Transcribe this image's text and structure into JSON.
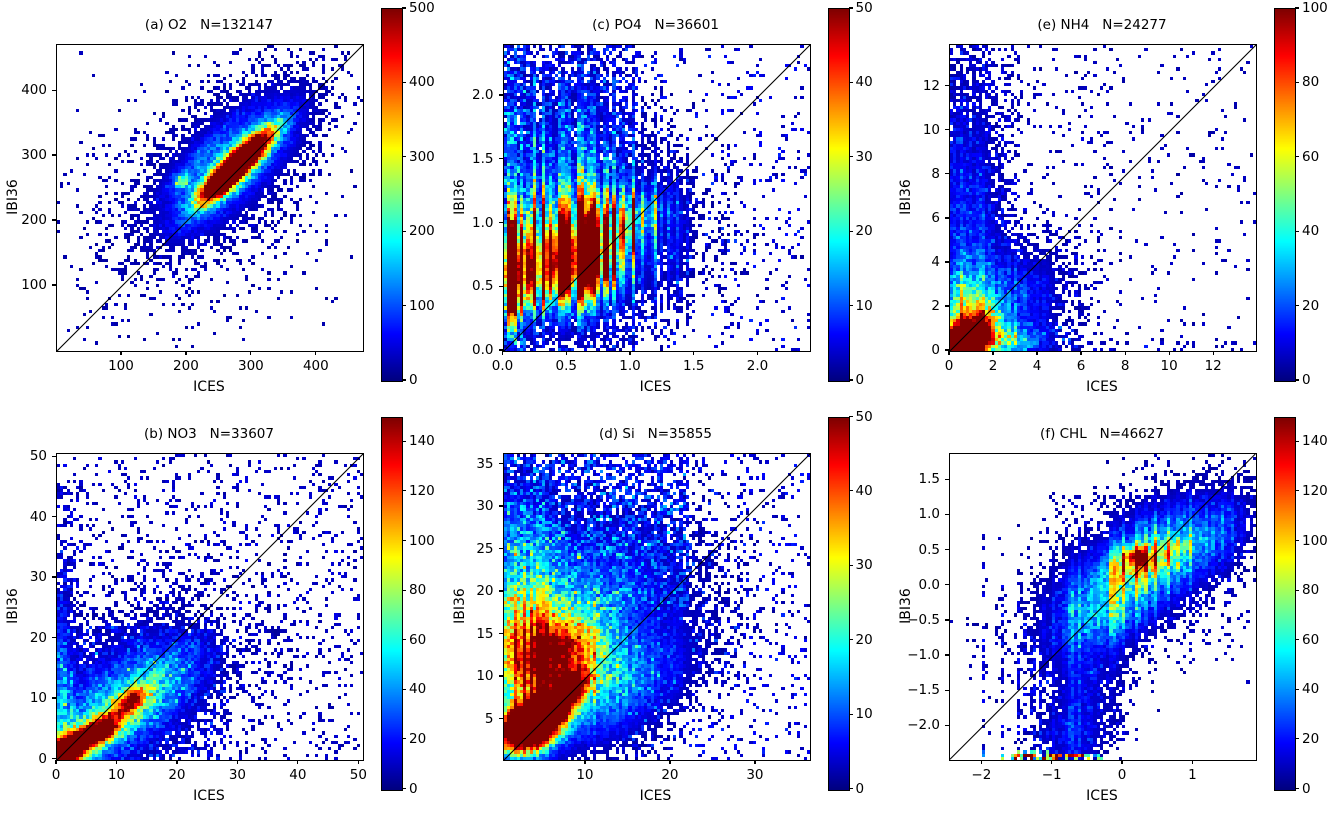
{
  "figure": {
    "background": "#ffffff",
    "text_color": "#000000",
    "axis_color": "#000000",
    "colormap": "jet",
    "identity_line_color": "#000000"
  },
  "chart_data": [
    {
      "type": "heatmap",
      "panel": "a",
      "variable": "O2",
      "n": 132147,
      "title": "(a) O2   N=132147",
      "xlabel": "ICES",
      "ylabel": "IBI36",
      "xlim": [
        0,
        471
      ],
      "ylim": [
        0,
        471
      ],
      "xticks": [
        100,
        200,
        300,
        400
      ],
      "xtick_labels": [
        "100",
        "200",
        "300",
        "400"
      ],
      "yticks": [
        100,
        200,
        300,
        400
      ],
      "ytick_labels": [
        "100",
        "200",
        "300",
        "400"
      ],
      "colorbar": {
        "vmin": 0,
        "vmax": 500,
        "ticks": [
          0,
          100,
          200,
          300,
          400,
          500
        ],
        "tick_labels": [
          "0",
          "100",
          "200",
          "300",
          "400",
          "500"
        ]
      },
      "identity_line": true,
      "bins": 96,
      "stripe_strength": 0,
      "density_blobs": [
        {
          "x": 276,
          "y": 285,
          "sx": 46,
          "sy": 11,
          "ang": 45,
          "amp": 900
        },
        {
          "x": 252,
          "y": 258,
          "sx": 13,
          "sy": 8,
          "ang": 45,
          "amp": 620
        },
        {
          "x": 276,
          "y": 285,
          "sx": 60,
          "sy": 20,
          "ang": 45,
          "amp": 180
        },
        {
          "x": 268,
          "y": 290,
          "sx": 95,
          "sy": 42,
          "ang": 45,
          "amp": 70
        },
        {
          "x": 255,
          "y": 280,
          "sx": 140,
          "sy": 80,
          "ang": 45,
          "amp": 16
        },
        {
          "x": 225,
          "y": 305,
          "sx": 50,
          "sy": 9,
          "ang": 45,
          "amp": 45
        },
        {
          "x": 193,
          "y": 262,
          "sx": 9,
          "sy": 7,
          "ang": 45,
          "amp": 210
        }
      ],
      "noise_rects": [
        {
          "x0": 15,
          "x1": 460,
          "y0": 15,
          "y1": 460,
          "prob": 0.035,
          "amp": 25
        },
        {
          "x0": 40,
          "x1": 330,
          "y0": 40,
          "y1": 330,
          "prob": 0.07,
          "amp": 22
        },
        {
          "x0": 150,
          "x1": 430,
          "y0": 150,
          "y1": 440,
          "prob": 0.06,
          "amp": 22
        }
      ],
      "stripes": []
    },
    {
      "type": "heatmap",
      "panel": "c",
      "variable": "PO4",
      "n": 36601,
      "title": "(c) PO4   N=36601",
      "xlabel": "ICES",
      "ylabel": "IBI36",
      "xlim": [
        0,
        2.4
      ],
      "ylim": [
        0,
        2.4
      ],
      "xticks": [
        0.0,
        0.5,
        1.0,
        1.5,
        2.0
      ],
      "xtick_labels": [
        "0.0",
        "0.5",
        "1.0",
        "1.5",
        "2.0"
      ],
      "yticks": [
        0.0,
        0.5,
        1.0,
        1.5,
        2.0
      ],
      "ytick_labels": [
        "0.0",
        "0.5",
        "1.0",
        "1.5",
        "2.0"
      ],
      "colorbar": {
        "vmin": 0,
        "vmax": 50,
        "ticks": [
          0,
          10,
          20,
          30,
          40,
          50
        ],
        "tick_labels": [
          "0",
          "10",
          "20",
          "30",
          "40",
          "50"
        ]
      },
      "identity_line": true,
      "bins": 96,
      "stripe_strength": 0.95,
      "density_blobs": [
        {
          "x": 0.33,
          "y": 0.62,
          "sx": 0.3,
          "sy": 0.17,
          "ang": 8,
          "amp": 44
        },
        {
          "x": 0.08,
          "y": 0.6,
          "sx": 0.07,
          "sy": 0.22,
          "ang": 0,
          "amp": 70
        },
        {
          "x": 0.6,
          "y": 0.74,
          "sx": 0.2,
          "sy": 0.17,
          "ang": 25,
          "amp": 52
        },
        {
          "x": 0.45,
          "y": 0.95,
          "sx": 0.35,
          "sy": 0.2,
          "ang": 10,
          "amp": 26
        },
        {
          "x": 0.5,
          "y": 0.8,
          "sx": 0.55,
          "sy": 0.38,
          "ang": 10,
          "amp": 14
        },
        {
          "x": 1.0,
          "y": 1.02,
          "sx": 0.16,
          "sy": 0.1,
          "ang": 45,
          "amp": 28
        },
        {
          "x": 0.35,
          "y": 1.55,
          "sx": 0.45,
          "sy": 0.45,
          "ang": 0,
          "amp": 8
        }
      ],
      "noise_rects": [
        {
          "x0": 0,
          "x1": 1.05,
          "y0": 1.05,
          "y1": 2.4,
          "prob": 0.4,
          "amp": 6.5
        },
        {
          "x0": 0,
          "x1": 0.18,
          "y0": 0,
          "y1": 2.4,
          "prob": 0.45,
          "amp": 8
        },
        {
          "x0": 1.05,
          "x1": 2.4,
          "y0": 0,
          "y1": 2.4,
          "prob": 0.1,
          "amp": 5.5
        },
        {
          "x0": 0,
          "x1": 1.05,
          "y0": 0,
          "y1": 0.42,
          "prob": 0.25,
          "amp": 6
        }
      ],
      "stripes": []
    },
    {
      "type": "heatmap",
      "panel": "e",
      "variable": "NH4",
      "n": 24277,
      "title": "(e) NH4   N=24277",
      "xlabel": "ICES",
      "ylabel": "IBI36",
      "xlim": [
        0,
        13.9
      ],
      "ylim": [
        0,
        13.9
      ],
      "xticks": [
        0,
        2,
        4,
        6,
        8,
        10,
        12
      ],
      "xtick_labels": [
        "0",
        "2",
        "4",
        "6",
        "8",
        "10",
        "12"
      ],
      "yticks": [
        0,
        2,
        4,
        6,
        8,
        10,
        12
      ],
      "ytick_labels": [
        "0",
        "2",
        "4",
        "6",
        "8",
        "10",
        "12"
      ],
      "colorbar": {
        "vmin": 0,
        "vmax": 100,
        "ticks": [
          0,
          20,
          40,
          60,
          80,
          100
        ],
        "tick_labels": [
          "0",
          "20",
          "40",
          "60",
          "80",
          "100"
        ]
      },
      "identity_line": true,
      "bins": 96,
      "stripe_strength": 0.3,
      "density_blobs": [
        {
          "x": 0.45,
          "y": 0.35,
          "sx": 0.6,
          "sy": 0.45,
          "ang": 25,
          "amp": 260
        },
        {
          "x": 1.1,
          "y": 0.9,
          "sx": 0.8,
          "sy": 0.55,
          "ang": 40,
          "amp": 80
        },
        {
          "x": 0.7,
          "y": 1.9,
          "sx": 0.7,
          "sy": 1.1,
          "ang": 0,
          "amp": 36
        },
        {
          "x": 2.0,
          "y": 0.5,
          "sx": 1.3,
          "sy": 0.4,
          "ang": 0,
          "amp": 40
        },
        {
          "x": 0.7,
          "y": 5.5,
          "sx": 1.0,
          "sy": 4.5,
          "ang": 0,
          "amp": 15
        },
        {
          "x": 2.5,
          "y": 2.2,
          "sx": 1.8,
          "sy": 1.5,
          "ang": 30,
          "amp": 18
        }
      ],
      "noise_rects": [
        {
          "x0": 0,
          "x1": 3.2,
          "y0": 0,
          "y1": 13.9,
          "prob": 0.35,
          "amp": 8
        },
        {
          "x0": 3.2,
          "x1": 7.5,
          "y0": 0,
          "y1": 13.9,
          "prob": 0.15,
          "amp": 6.5
        },
        {
          "x0": 7.5,
          "x1": 13.9,
          "y0": 0,
          "y1": 13.9,
          "prob": 0.08,
          "amp": 6
        },
        {
          "x0": 0,
          "x1": 6,
          "y0": 0,
          "y1": 1.3,
          "prob": 0.3,
          "amp": 9
        },
        {
          "x0": 0,
          "x1": 13.9,
          "y0": 0,
          "y1": 0.5,
          "prob": 0.2,
          "amp": 7
        }
      ],
      "stripes": []
    },
    {
      "type": "heatmap",
      "panel": "b",
      "variable": "NO3",
      "n": 33607,
      "title": "(b) NO3   N=33607",
      "xlabel": "ICES",
      "ylabel": "IBI36",
      "xlim": [
        0,
        50.6
      ],
      "ylim": [
        0,
        50.6
      ],
      "xticks": [
        0,
        10,
        20,
        30,
        40,
        50
      ],
      "xtick_labels": [
        "0",
        "10",
        "20",
        "30",
        "40",
        "50"
      ],
      "yticks": [
        0,
        10,
        20,
        30,
        40,
        50
      ],
      "ytick_labels": [
        "0",
        "10",
        "20",
        "30",
        "40",
        "50"
      ],
      "colorbar": {
        "vmin": 0,
        "vmax": 150,
        "ticks": [
          0,
          20,
          40,
          60,
          80,
          100,
          120,
          140
        ],
        "tick_labels": [
          "0",
          "20",
          "40",
          "60",
          "80",
          "100",
          "120",
          "140"
        ]
      },
      "identity_line": true,
      "bins": 96,
      "stripe_strength": 0,
      "density_blobs": [
        {
          "x": 1.2,
          "y": 1.2,
          "sx": 2.6,
          "sy": 1.4,
          "ang": 38,
          "amp": 260
        },
        {
          "x": 6.2,
          "y": 4.3,
          "sx": 3.4,
          "sy": 1.5,
          "ang": 33,
          "amp": 120
        },
        {
          "x": 7.8,
          "y": 5.0,
          "sx": 1.2,
          "sy": 0.8,
          "ang": 33,
          "amp": 155
        },
        {
          "x": 12.3,
          "y": 9.8,
          "sx": 2.0,
          "sy": 1.1,
          "ang": 38,
          "amp": 95
        },
        {
          "x": 9.0,
          "y": 7.0,
          "sx": 8.0,
          "sy": 3.5,
          "ang": 33,
          "amp": 40
        },
        {
          "x": 10,
          "y": 10,
          "sx": 13,
          "sy": 8,
          "ang": 35,
          "amp": 16
        },
        {
          "x": 0.7,
          "y": 10,
          "sx": 1.1,
          "sy": 12,
          "ang": 0,
          "amp": 26
        },
        {
          "x": 16,
          "y": 13,
          "sx": 6,
          "sy": 3,
          "ang": 35,
          "amp": 22
        }
      ],
      "noise_rects": [
        {
          "x0": 0,
          "x1": 50.6,
          "y0": 0,
          "y1": 50.6,
          "prob": 0.18,
          "amp": 11
        },
        {
          "x0": 0,
          "x1": 28,
          "y0": 0,
          "y1": 22,
          "prob": 0.3,
          "amp": 12
        },
        {
          "x0": 0,
          "x1": 4,
          "y0": 0,
          "y1": 46,
          "prob": 0.3,
          "amp": 12
        }
      ],
      "stripes": []
    },
    {
      "type": "heatmap",
      "panel": "d",
      "variable": "Si",
      "n": 35855,
      "title": "(d) Si   N=35855",
      "xlabel": "ICES",
      "ylabel": "IBI36",
      "xlim": [
        0.3,
        36.3
      ],
      "ylim": [
        0.3,
        36.3
      ],
      "xticks": [
        10,
        20,
        30
      ],
      "xtick_labels": [
        "10",
        "20",
        "30"
      ],
      "yticks": [
        5,
        10,
        15,
        20,
        25,
        30,
        35
      ],
      "ytick_labels": [
        "5",
        "10",
        "15",
        "20",
        "25",
        "30",
        "35"
      ],
      "colorbar": {
        "vmin": 0,
        "vmax": 50,
        "ticks": [
          0,
          10,
          20,
          30,
          40,
          50
        ],
        "tick_labels": [
          "0",
          "10",
          "20",
          "30",
          "40",
          "50"
        ]
      },
      "identity_line": true,
      "bins": 96,
      "stripe_strength": 0.25,
      "density_blobs": [
        {
          "x": 3.2,
          "y": 4.3,
          "sx": 2.4,
          "sy": 1.7,
          "ang": 28,
          "amp": 120
        },
        {
          "x": 6.3,
          "y": 6.8,
          "sx": 2.2,
          "sy": 1.3,
          "ang": 40,
          "amp": 55
        },
        {
          "x": 8.2,
          "y": 8.8,
          "sx": 1.7,
          "sy": 1.0,
          "ang": 45,
          "amp": 34
        },
        {
          "x": 4.5,
          "y": 11.0,
          "sx": 4.5,
          "sy": 3.2,
          "ang": 10,
          "amp": 26
        },
        {
          "x": 4.0,
          "y": 15.5,
          "sx": 5.0,
          "sy": 3.5,
          "ang": 5,
          "amp": 17
        },
        {
          "x": 7.0,
          "y": 13.0,
          "sx": 3.0,
          "sy": 2.0,
          "ang": 30,
          "amp": 22
        },
        {
          "x": 8.0,
          "y": 19.0,
          "sx": 9.0,
          "sy": 6.0,
          "ang": 15,
          "amp": 10
        },
        {
          "x": 12.0,
          "y": 8.0,
          "sx": 7.0,
          "sy": 3.5,
          "ang": 28,
          "amp": 12
        },
        {
          "x": 2.0,
          "y": 22.0,
          "sx": 3.0,
          "sy": 8.0,
          "ang": 0,
          "amp": 9
        }
      ],
      "noise_rects": [
        {
          "x0": 0.3,
          "x1": 22,
          "y0": 18,
          "y1": 36.3,
          "prob": 0.4,
          "amp": 7
        },
        {
          "x0": 0.3,
          "x1": 14,
          "y0": 8,
          "y1": 20,
          "prob": 0.28,
          "amp": 7
        },
        {
          "x0": 14,
          "x1": 36.3,
          "y0": 0.3,
          "y1": 14,
          "prob": 0.13,
          "amp": 6
        },
        {
          "x0": 18,
          "x1": 36.3,
          "y0": 14,
          "y1": 36.3,
          "prob": 0.12,
          "amp": 5.5
        },
        {
          "x0": 0.3,
          "x1": 20,
          "y0": 24,
          "y1": 36.3,
          "prob": 0.3,
          "amp": 6.5
        }
      ],
      "stripes": []
    },
    {
      "type": "heatmap",
      "panel": "f",
      "variable": "CHL",
      "n": 46627,
      "title": "(f) CHL   N=46627",
      "xlabel": "ICES",
      "ylabel": "IBI36",
      "xlim": [
        -2.46,
        1.89
      ],
      "ylim": [
        -2.47,
        1.88
      ],
      "xticks": [
        -2,
        -1,
        0,
        1
      ],
      "xtick_labels": [
        "−2",
        "−1",
        "0",
        "1"
      ],
      "yticks": [
        -2.0,
        -1.5,
        -1.0,
        -0.5,
        0.0,
        0.5,
        1.0,
        1.5
      ],
      "ytick_labels": [
        "−2.0",
        "−1.5",
        "−1.0",
        "−0.5",
        "0.0",
        "0.5",
        "1.0",
        "1.5"
      ],
      "colorbar": {
        "vmin": 0,
        "vmax": 150,
        "ticks": [
          0,
          20,
          40,
          60,
          80,
          100,
          120,
          140
        ],
        "tick_labels": [
          "0",
          "20",
          "40",
          "60",
          "80",
          "100",
          "120",
          "140"
        ]
      },
      "identity_line": true,
      "bins": 96,
      "stripe_strength": 0.45,
      "density_blobs": [
        {
          "x": 0.35,
          "y": 0.33,
          "sx": 0.8,
          "sy": 0.38,
          "ang": 36,
          "amp": 40
        },
        {
          "x": 0.28,
          "y": 0.36,
          "sx": 0.38,
          "sy": 0.16,
          "ang": 20,
          "amp": 60
        },
        {
          "x": 0.18,
          "y": 0.42,
          "sx": 0.1,
          "sy": 0.07,
          "ang": 0,
          "amp": 120
        },
        {
          "x": -0.25,
          "y": -0.35,
          "sx": 0.4,
          "sy": 0.28,
          "ang": 40,
          "amp": 30
        },
        {
          "x": 0.9,
          "y": 0.55,
          "sx": 0.55,
          "sy": 0.3,
          "ang": 30,
          "amp": 24
        },
        {
          "x": -0.55,
          "y": -1.4,
          "sx": 0.3,
          "sy": 0.75,
          "ang": 0,
          "amp": 16
        },
        {
          "x": -0.75,
          "y": -2.15,
          "sx": 0.28,
          "sy": 0.28,
          "ang": 0,
          "amp": 14
        },
        {
          "x": 0.1,
          "y": 0.1,
          "sx": 1.1,
          "sy": 0.6,
          "ang": 36,
          "amp": 12
        }
      ],
      "noise_rects": [
        {
          "x0": -1.05,
          "x1": 1.85,
          "y0": -0.9,
          "y1": 1.35,
          "prob": 0.12,
          "amp": 9
        },
        {
          "x0": -1.05,
          "x1": -0.3,
          "y0": -2.45,
          "y1": -0.3,
          "prob": 0.25,
          "amp": 9
        },
        {
          "x0": -0.45,
          "x1": 0.2,
          "y0": -2.2,
          "y1": -1.0,
          "prob": 0.15,
          "amp": 8
        },
        {
          "x0": -1.6,
          "x1": -0.55,
          "y0": -2.47,
          "y1": -2.39,
          "prob": 0.75,
          "amp": 160
        },
        {
          "x0": -0.55,
          "x1": -0.25,
          "y0": -2.47,
          "y1": -2.39,
          "prob": 0.5,
          "amp": 60
        }
      ],
      "stripes": [
        {
          "x": -2.0,
          "y0": -2.47,
          "y1": 0.85,
          "prob": 0.45,
          "amp": 13,
          "bottom_amp": 45
        },
        {
          "x": -1.7,
          "y0": -2.47,
          "y1": 0.0,
          "prob": 0.45,
          "amp": 13,
          "bottom_amp": 45
        },
        {
          "x": -1.5,
          "y0": -2.47,
          "y1": -0.1,
          "prob": 0.45,
          "amp": 13,
          "bottom_amp": 45
        },
        {
          "x": -1.38,
          "y0": -2.47,
          "y1": -0.5,
          "prob": 0.45,
          "amp": 13,
          "bottom_amp": 45
        },
        {
          "x": -1.28,
          "y0": -2.47,
          "y1": -0.7,
          "prob": 0.45,
          "amp": 13,
          "bottom_amp": 45
        },
        {
          "x": -1.18,
          "y0": -2.47,
          "y1": -0.9,
          "prob": 0.45,
          "amp": 13,
          "bottom_amp": 45
        },
        {
          "x": -1.08,
          "y0": -2.47,
          "y1": -0.9,
          "prob": 0.5,
          "amp": 13,
          "bottom_amp": 45
        }
      ]
    }
  ]
}
